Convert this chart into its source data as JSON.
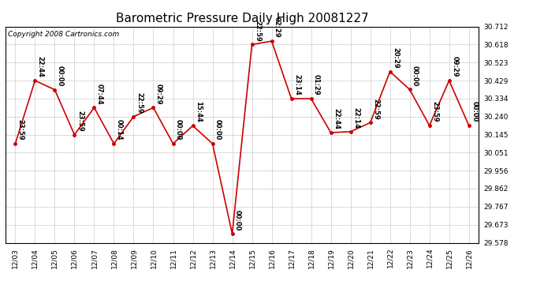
{
  "title": "Barometric Pressure Daily High 20081227",
  "copyright": "Copyright 2008 Cartronics.com",
  "background_color": "#ffffff",
  "plot_background": "#ffffff",
  "grid_color": "#cccccc",
  "line_color": "#cc0000",
  "marker_color": "#cc0000",
  "dates": [
    "12/03",
    "12/04",
    "12/05",
    "12/06",
    "12/07",
    "12/08",
    "12/09",
    "12/10",
    "12/11",
    "12/12",
    "12/13",
    "12/14",
    "12/15",
    "12/16",
    "12/17",
    "12/18",
    "12/19",
    "12/20",
    "12/21",
    "12/22",
    "12/23",
    "12/24",
    "12/25",
    "12/26"
  ],
  "values": [
    30.098,
    30.429,
    30.381,
    30.145,
    30.287,
    30.098,
    30.24,
    30.287,
    30.098,
    30.192,
    30.098,
    29.625,
    30.618,
    30.636,
    30.334,
    30.334,
    30.156,
    30.161,
    30.208,
    30.476,
    30.382,
    30.193,
    30.429,
    30.193
  ],
  "times": [
    "23:59",
    "22:44",
    "00:00",
    "23:59",
    "07:44",
    "00:14",
    "22:59",
    "09:29",
    "00:00",
    "15:44",
    "00:00",
    "00:00",
    "22:59",
    "02:29",
    "23:14",
    "01:29",
    "22:44",
    "22:14",
    "22:59",
    "20:29",
    "00:00",
    "23:59",
    "09:29",
    "00:00"
  ],
  "ylim": [
    29.578,
    30.712
  ],
  "yticks": [
    29.578,
    29.673,
    29.767,
    29.862,
    29.956,
    30.051,
    30.145,
    30.24,
    30.334,
    30.429,
    30.523,
    30.618,
    30.712
  ],
  "title_fontsize": 11,
  "label_fontsize": 6.0,
  "tick_fontsize": 6.5,
  "copyright_fontsize": 6.5
}
